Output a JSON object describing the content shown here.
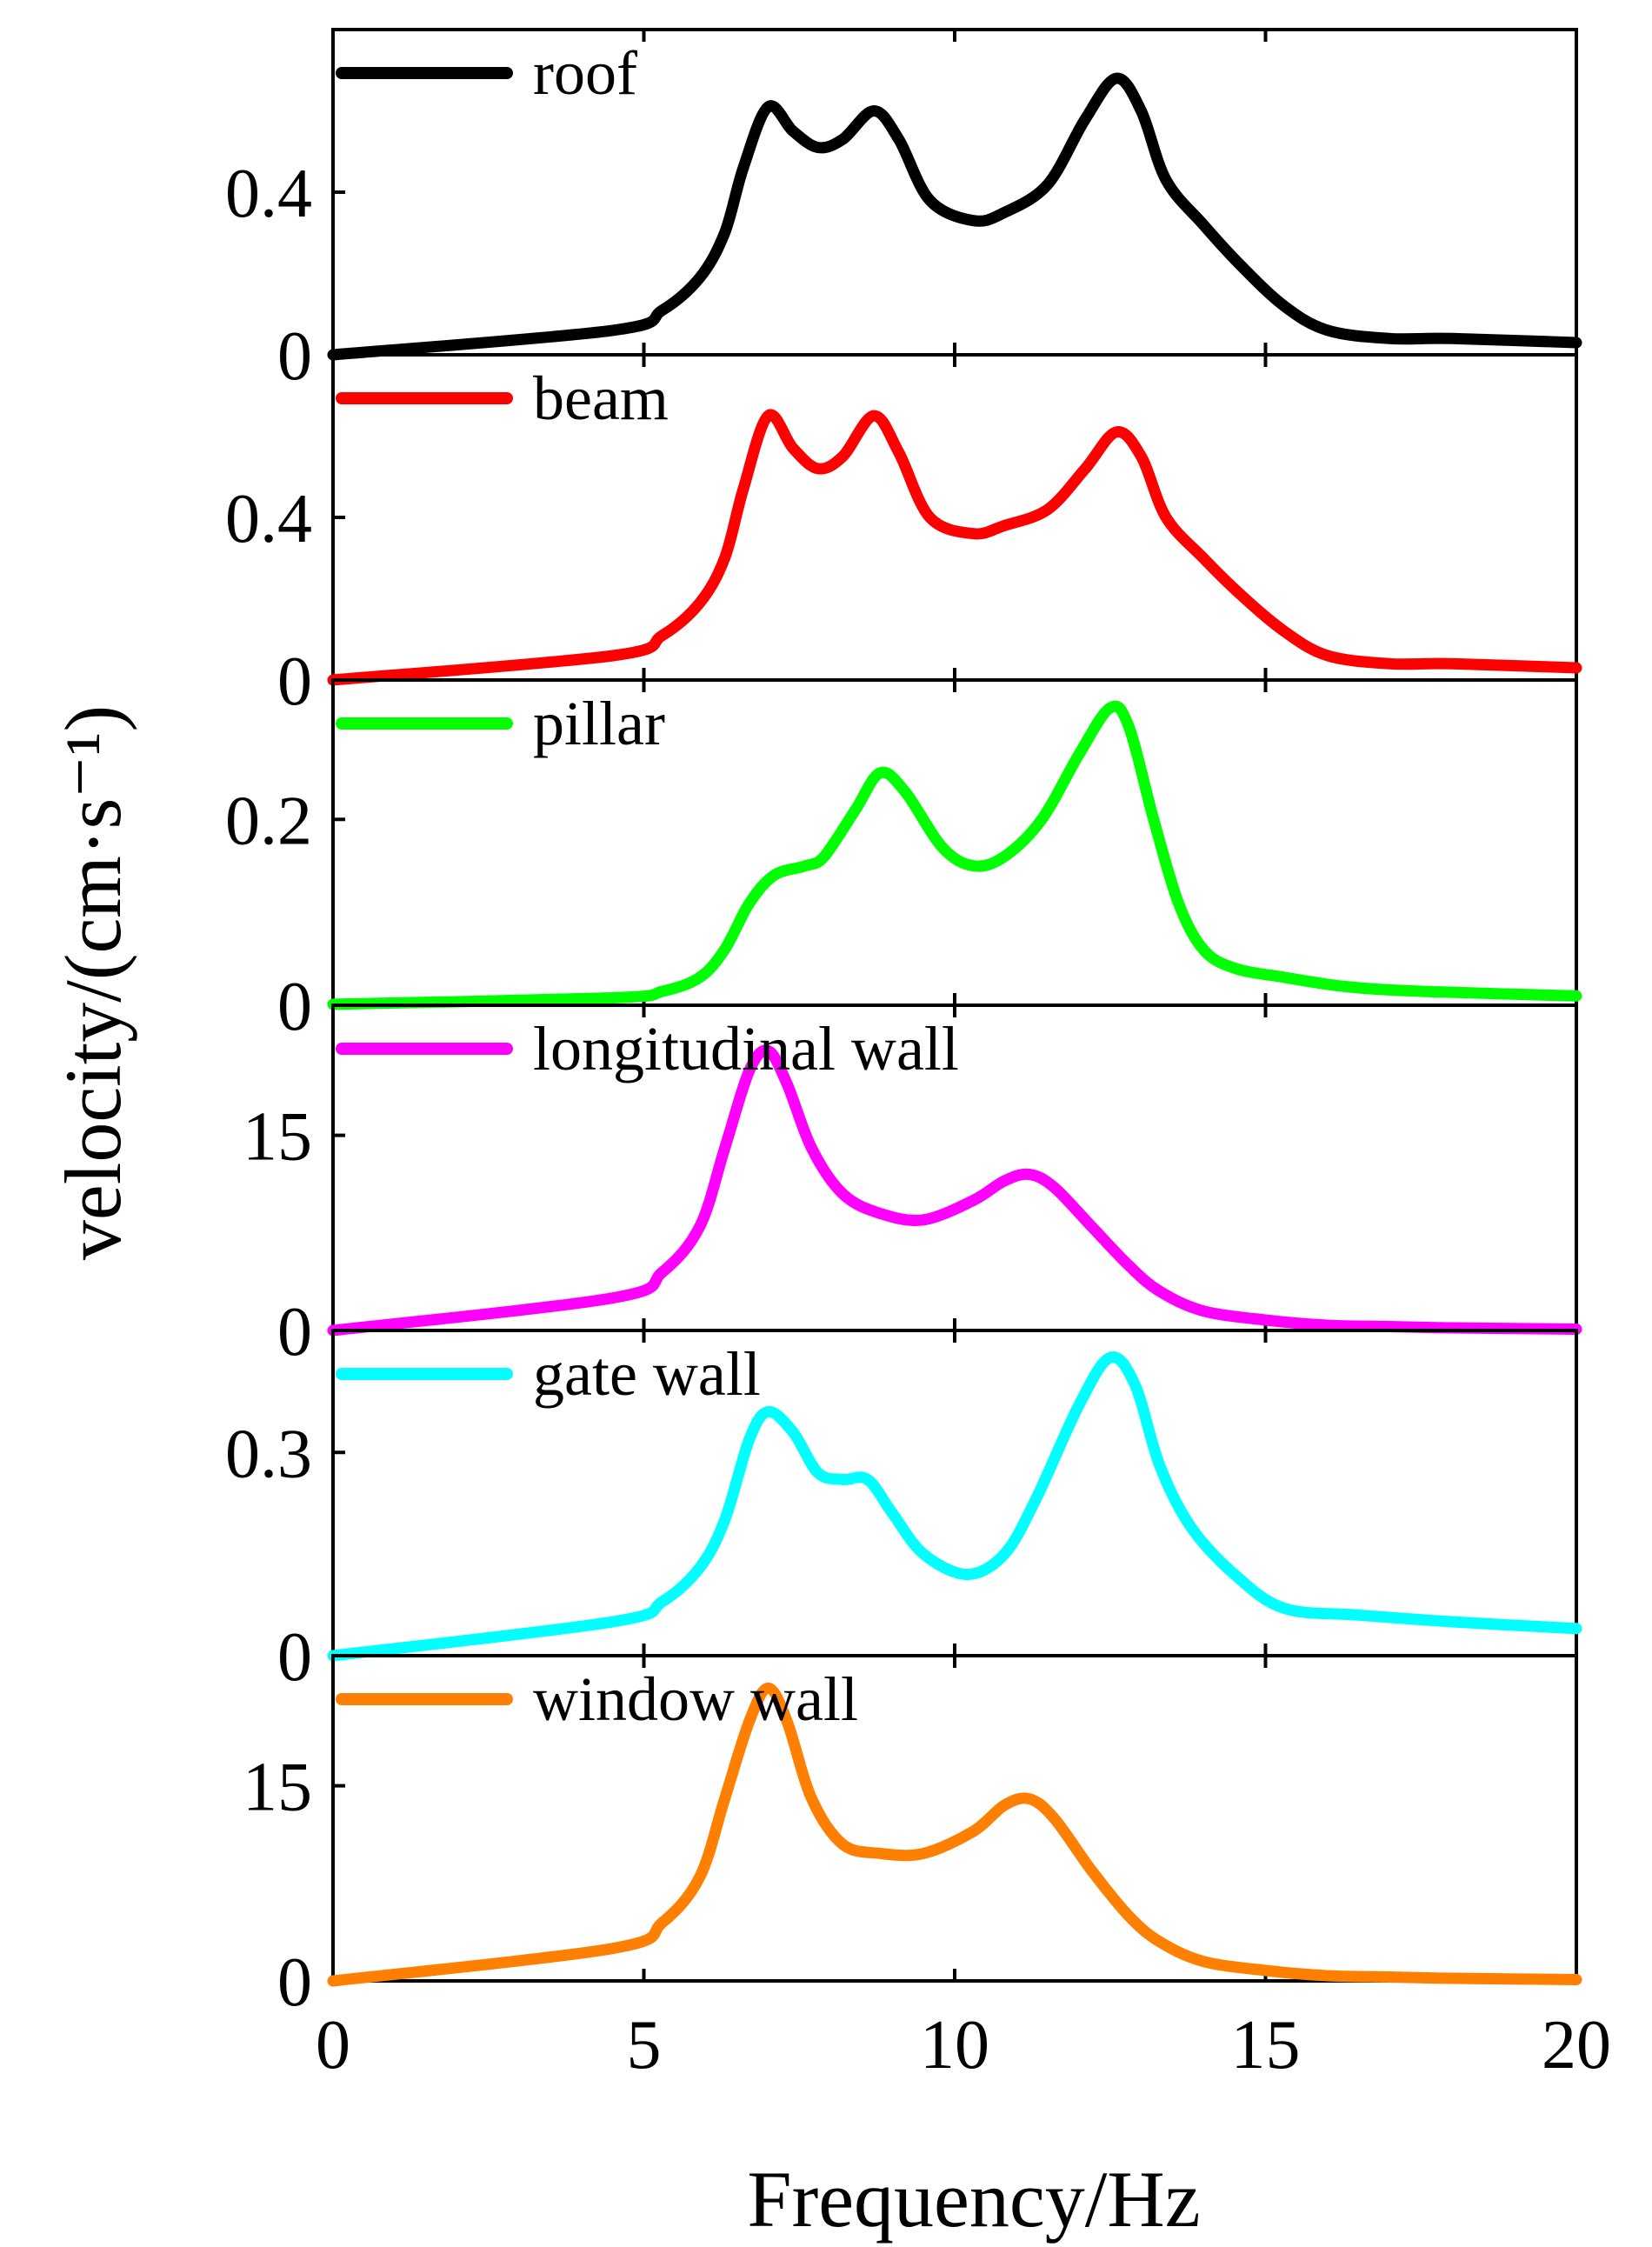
{
  "chart_data": {
    "type": "line",
    "xlabel": "Frequency/Hz",
    "ylabel": "velocity/(cm·s⁻¹)",
    "xlim": [
      0,
      20
    ],
    "x_ticks": [
      "0",
      "5",
      "10",
      "15",
      "20"
    ],
    "grid": false,
    "legend_position": "top-left",
    "panels": [
      {
        "name": "roof",
        "color": "#000000",
        "ylim": [
          0,
          0.8
        ],
        "y_ticks": [
          {
            "value": 0,
            "label": "0"
          },
          {
            "value": 0.4,
            "label": "0.4"
          }
        ],
        "x": [
          0,
          4.5,
          5.3,
          5.9,
          6.3,
          6.6,
          7.0,
          7.4,
          7.8,
          8.2,
          8.7,
          9.1,
          9.6,
          10.3,
          10.8,
          11.5,
          12.1,
          12.6,
          13.0,
          13.4,
          14.0,
          14.6,
          15.3,
          16.0,
          17.0,
          18.0,
          20.0
        ],
        "y": [
          0,
          0.06,
          0.11,
          0.19,
          0.3,
          0.46,
          0.61,
          0.55,
          0.51,
          0.53,
          0.6,
          0.53,
          0.38,
          0.33,
          0.35,
          0.42,
          0.58,
          0.68,
          0.6,
          0.43,
          0.32,
          0.22,
          0.12,
          0.06,
          0.04,
          0.04,
          0.03
        ]
      },
      {
        "name": "beam",
        "color": "#ff0000",
        "ylim": [
          0,
          0.8
        ],
        "y_ticks": [
          {
            "value": 0,
            "label": "0"
          },
          {
            "value": 0.4,
            "label": "0.4"
          }
        ],
        "x": [
          0,
          4.5,
          5.3,
          5.9,
          6.3,
          6.6,
          7.0,
          7.4,
          7.8,
          8.2,
          8.7,
          9.1,
          9.6,
          10.3,
          10.8,
          11.5,
          12.1,
          12.6,
          13.0,
          13.4,
          14.0,
          14.6,
          15.3,
          16.0,
          17.0,
          18.0,
          20.0
        ],
        "y": [
          0,
          0.06,
          0.11,
          0.19,
          0.3,
          0.47,
          0.65,
          0.57,
          0.52,
          0.55,
          0.65,
          0.56,
          0.4,
          0.36,
          0.38,
          0.42,
          0.52,
          0.61,
          0.55,
          0.4,
          0.3,
          0.21,
          0.12,
          0.06,
          0.04,
          0.04,
          0.03
        ]
      },
      {
        "name": "pillar",
        "color": "#00ff00",
        "ylim": [
          0,
          0.35
        ],
        "y_ticks": [
          {
            "value": 0,
            "label": "0"
          },
          {
            "value": 0.2,
            "label": "0.2"
          }
        ],
        "x": [
          0,
          4.5,
          5.3,
          5.9,
          6.3,
          6.7,
          7.1,
          7.6,
          7.9,
          8.4,
          8.8,
          9.2,
          9.8,
          10.3,
          10.8,
          11.4,
          12.0,
          12.5,
          12.8,
          13.2,
          13.6,
          14.0,
          14.5,
          15.3,
          16.3,
          17.5,
          20.0
        ],
        "y": [
          0.001,
          0.008,
          0.015,
          0.03,
          0.06,
          0.11,
          0.14,
          0.15,
          0.16,
          0.21,
          0.25,
          0.23,
          0.17,
          0.15,
          0.16,
          0.2,
          0.27,
          0.32,
          0.3,
          0.2,
          0.11,
          0.06,
          0.04,
          0.03,
          0.02,
          0.015,
          0.01
        ]
      },
      {
        "name": "longitudinal wall",
        "color": "#ff00ff",
        "ylim": [
          0,
          25
        ],
        "y_ticks": [
          {
            "value": 0,
            "label": "0"
          },
          {
            "value": 15,
            "label": "15"
          }
        ],
        "x": [
          0,
          4.5,
          5.3,
          5.9,
          6.3,
          6.7,
          7.0,
          7.3,
          7.7,
          8.2,
          8.8,
          9.5,
          10.3,
          10.8,
          11.2,
          11.6,
          12.2,
          12.8,
          13.3,
          14.0,
          15.0,
          16.0,
          17.0,
          18.0,
          20.0
        ],
        "y": [
          0,
          2.5,
          4.5,
          8.0,
          14.0,
          20.0,
          21.5,
          19.0,
          14.0,
          10.5,
          9.0,
          8.5,
          10.0,
          11.5,
          12.0,
          11.0,
          8.0,
          5.0,
          3.0,
          1.5,
          0.8,
          0.4,
          0.3,
          0.2,
          0.1
        ]
      },
      {
        "name": "gate wall",
        "color": "#00ffff",
        "ylim": [
          0,
          0.48
        ],
        "y_ticks": [
          {
            "value": 0,
            "label": "0"
          },
          {
            "value": 0.3,
            "label": "0.3"
          }
        ],
        "x": [
          0,
          4.5,
          5.3,
          5.9,
          6.3,
          6.7,
          7.0,
          7.4,
          7.8,
          8.2,
          8.6,
          9.0,
          9.5,
          10.2,
          10.8,
          11.3,
          12.0,
          12.5,
          12.9,
          13.3,
          13.8,
          14.5,
          15.3,
          16.5,
          18.0,
          20.0
        ],
        "y": [
          0,
          0.05,
          0.08,
          0.13,
          0.2,
          0.32,
          0.36,
          0.33,
          0.27,
          0.26,
          0.26,
          0.21,
          0.15,
          0.12,
          0.15,
          0.23,
          0.37,
          0.44,
          0.4,
          0.28,
          0.19,
          0.12,
          0.07,
          0.06,
          0.05,
          0.04
        ]
      },
      {
        "name": "window wall",
        "color": "#ff8000",
        "ylim": [
          0,
          25
        ],
        "y_ticks": [
          {
            "value": 0,
            "label": "0"
          },
          {
            "value": 15,
            "label": "15"
          }
        ],
        "x": [
          0,
          4.5,
          5.3,
          5.9,
          6.3,
          6.7,
          7.0,
          7.3,
          7.7,
          8.2,
          8.8,
          9.5,
          10.3,
          10.8,
          11.2,
          11.6,
          12.2,
          12.8,
          13.3,
          14.0,
          15.0,
          16.0,
          17.0,
          18.0,
          20.0
        ],
        "y": [
          0,
          2.5,
          4.5,
          8.0,
          14.0,
          20.0,
          22.5,
          20.0,
          14.0,
          10.5,
          9.8,
          9.8,
          11.5,
          13.5,
          14.0,
          12.5,
          8.5,
          5.0,
          3.0,
          1.5,
          0.8,
          0.4,
          0.3,
          0.2,
          0.1
        ]
      }
    ]
  }
}
